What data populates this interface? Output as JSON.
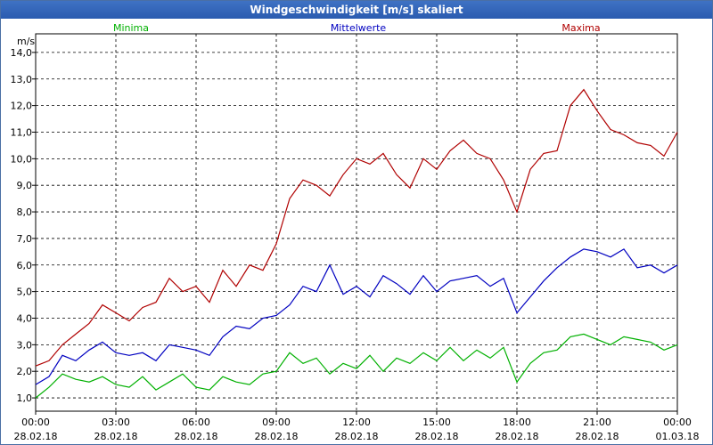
{
  "window": {
    "title": "Windgeschwindigkeit [m/s] skaliert"
  },
  "chart_data": {
    "type": "line",
    "title": "Windgeschwindigkeit [m/s] skaliert",
    "ylabel": "m/s",
    "ylim": [
      0.5,
      14.7
    ],
    "yticks": [
      1.0,
      2.0,
      3.0,
      4.0,
      5.0,
      6.0,
      7.0,
      8.0,
      9.0,
      10.0,
      11.0,
      12.0,
      13.0,
      14.0
    ],
    "ytick_labels": [
      "1,0",
      "2,0",
      "3,0",
      "4,0",
      "5,0",
      "6,0",
      "7,0",
      "8,0",
      "9,0",
      "10,0",
      "11,0",
      "12,0",
      "13,0",
      "14,0"
    ],
    "xlim_hours": [
      0,
      24
    ],
    "xticks": [
      {
        "h": 0,
        "time": "00:00",
        "date": "28.02.18"
      },
      {
        "h": 3,
        "time": "03:00",
        "date": "28.02.18"
      },
      {
        "h": 6,
        "time": "06:00",
        "date": "28.02.18"
      },
      {
        "h": 9,
        "time": "09:00",
        "date": "28.02.18"
      },
      {
        "h": 12,
        "time": "12:00",
        "date": "28.02.18"
      },
      {
        "h": 15,
        "time": "15:00",
        "date": "28.02.18"
      },
      {
        "h": 18,
        "time": "18:00",
        "date": "28.02.18"
      },
      {
        "h": 21,
        "time": "21:00",
        "date": "28.02.18"
      },
      {
        "h": 24,
        "time": "00:00",
        "date": "01.03.18"
      }
    ],
    "series": [
      {
        "name": "Minima",
        "color": "#00b000",
        "x": [
          0,
          0.5,
          1,
          1.5,
          2,
          2.5,
          3,
          3.5,
          4,
          4.5,
          5,
          5.5,
          6,
          6.5,
          7,
          7.5,
          8,
          8.5,
          9,
          9.5,
          10,
          10.5,
          11,
          11.5,
          12,
          12.5,
          13,
          13.5,
          14,
          14.5,
          15,
          15.5,
          16,
          16.5,
          17,
          17.5,
          18,
          18.5,
          19,
          19.5,
          20,
          20.5,
          21,
          21.5,
          22,
          22.5,
          23,
          23.5,
          24
        ],
        "values": [
          1.0,
          1.4,
          1.9,
          1.7,
          1.6,
          1.8,
          1.5,
          1.4,
          1.8,
          1.3,
          1.6,
          1.9,
          1.4,
          1.3,
          1.8,
          1.6,
          1.5,
          1.9,
          2.0,
          2.7,
          2.3,
          2.5,
          1.9,
          2.3,
          2.1,
          2.6,
          2.0,
          2.5,
          2.3,
          2.7,
          2.4,
          2.9,
          2.4,
          2.8,
          2.5,
          2.9,
          1.6,
          2.3,
          2.7,
          2.8,
          3.3,
          3.4,
          3.2,
          3.0,
          3.3,
          3.2,
          3.1,
          2.8,
          3.0
        ]
      },
      {
        "name": "Mittelwerte",
        "color": "#0000c0",
        "x": [
          0,
          0.5,
          1,
          1.5,
          2,
          2.5,
          3,
          3.5,
          4,
          4.5,
          5,
          5.5,
          6,
          6.5,
          7,
          7.5,
          8,
          8.5,
          9,
          9.5,
          10,
          10.5,
          11,
          11.5,
          12,
          12.5,
          13,
          13.5,
          14,
          14.5,
          15,
          15.5,
          16,
          16.5,
          17,
          17.5,
          18,
          18.5,
          19,
          19.5,
          20,
          20.5,
          21,
          21.5,
          22,
          22.5,
          23,
          23.5,
          24
        ],
        "values": [
          1.5,
          1.8,
          2.6,
          2.4,
          2.8,
          3.1,
          2.7,
          2.6,
          2.7,
          2.4,
          3.0,
          2.9,
          2.8,
          2.6,
          3.3,
          3.7,
          3.6,
          4.0,
          4.1,
          4.5,
          5.2,
          5.0,
          6.0,
          4.9,
          5.2,
          4.8,
          5.6,
          5.3,
          4.9,
          5.6,
          5.0,
          5.4,
          5.5,
          5.6,
          5.2,
          5.5,
          4.2,
          4.8,
          5.4,
          5.9,
          6.3,
          6.6,
          6.5,
          6.3,
          6.6,
          5.9,
          6.0,
          5.7,
          6.0
        ]
      },
      {
        "name": "Maxima",
        "color": "#b00000",
        "x": [
          0,
          0.5,
          1,
          1.5,
          2,
          2.5,
          3,
          3.5,
          4,
          4.5,
          5,
          5.5,
          6,
          6.5,
          7,
          7.5,
          8,
          8.5,
          9,
          9.5,
          10,
          10.5,
          11,
          11.5,
          12,
          12.5,
          13,
          13.5,
          14,
          14.5,
          15,
          15.5,
          16,
          16.5,
          17,
          17.5,
          18,
          18.5,
          19,
          19.5,
          20,
          20.5,
          21,
          21.5,
          22,
          22.5,
          23,
          23.5,
          24
        ],
        "values": [
          2.2,
          2.4,
          3.0,
          3.4,
          3.8,
          4.5,
          4.2,
          3.9,
          4.4,
          4.6,
          5.5,
          5.0,
          5.2,
          4.6,
          5.8,
          5.2,
          6.0,
          5.8,
          6.8,
          8.5,
          9.2,
          9.0,
          8.6,
          9.4,
          10.0,
          9.8,
          10.2,
          9.4,
          8.9,
          10.0,
          9.6,
          10.3,
          10.7,
          10.2,
          10.0,
          9.2,
          8.0,
          9.6,
          10.2,
          10.3,
          12.0,
          12.6,
          11.8,
          11.1,
          10.9,
          10.6,
          10.5,
          10.1,
          11.0
        ]
      }
    ]
  }
}
